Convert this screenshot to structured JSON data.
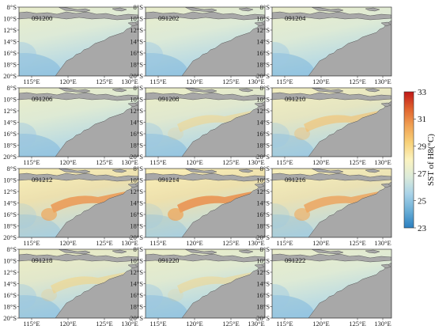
{
  "figure": {
    "panels": [
      {
        "label": "091200",
        "intensity": 0.05
      },
      {
        "label": "091202",
        "intensity": 0.05
      },
      {
        "label": "091204",
        "intensity": 0.06
      },
      {
        "label": "091206",
        "intensity": 0.12
      },
      {
        "label": "091208",
        "intensity": 0.22
      },
      {
        "label": "091210",
        "intensity": 0.55
      },
      {
        "label": "091212",
        "intensity": 0.95
      },
      {
        "label": "091214",
        "intensity": 1.0
      },
      {
        "label": "091216",
        "intensity": 0.85
      },
      {
        "label": "091218",
        "intensity": 0.32
      },
      {
        "label": "091220",
        "intensity": 0.18
      },
      {
        "label": "091222",
        "intensity": 0.1
      }
    ],
    "lon_ticks": [
      "115°E",
      "120°E",
      "125°E",
      "130°E"
    ],
    "lat_ticks": [
      "8°S",
      "10°S",
      "12°S",
      "14°S",
      "16°S",
      "18°S",
      "20°S"
    ],
    "colorbar": {
      "title": "SST of H8(°C)",
      "ticks": [
        "23",
        "25",
        "27",
        "29",
        "31",
        "33"
      ],
      "colors": [
        "#2a7fc0",
        "#6aaed6",
        "#a9d3e8",
        "#dcebd9",
        "#fbf3c0",
        "#f8d27a",
        "#f0a254",
        "#e0632e",
        "#c01818"
      ]
    },
    "colors": {
      "land": "#a8a8a8",
      "coast": "#555555"
    }
  }
}
